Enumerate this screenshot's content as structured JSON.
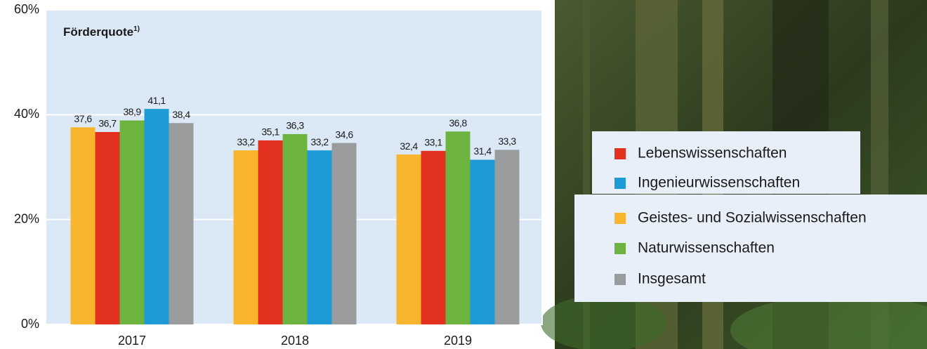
{
  "chart_data": {
    "type": "bar",
    "title": "Förderquote",
    "title_note": "1)",
    "categories": [
      "2017",
      "2018",
      "2019"
    ],
    "series": [
      {
        "name": "Geistes- und Sozialwissenschaften",
        "color": "#f9b52e",
        "values": [
          37.6,
          33.2,
          32.4
        ],
        "value_labels": [
          "37,6",
          "33,2",
          "32,4"
        ]
      },
      {
        "name": "Lebenswissenschaften",
        "color": "#e2321f",
        "values": [
          36.7,
          35.1,
          33.1
        ],
        "value_labels": [
          "36,7",
          "35,1",
          "33,1"
        ]
      },
      {
        "name": "Naturwissenschaften",
        "color": "#6cb33f",
        "values": [
          38.9,
          36.3,
          36.8
        ],
        "value_labels": [
          "38,9",
          "36,3",
          "36,8"
        ]
      },
      {
        "name": "Ingenieurwissenschaften",
        "color": "#1e9ad6",
        "values": [
          41.1,
          33.2,
          31.4
        ],
        "value_labels": [
          "41,1",
          "33,2",
          "31,4"
        ]
      },
      {
        "name": "Insgesamt",
        "color": "#9a9b9c",
        "values": [
          38.4,
          34.6,
          33.3
        ],
        "value_labels": [
          "38,4",
          "34,6",
          "33,3"
        ]
      }
    ],
    "ylim": [
      0,
      60
    ],
    "yticks": [
      {
        "value": 0,
        "label": "0%"
      },
      {
        "value": 20,
        "label": "20%"
      },
      {
        "value": 40,
        "label": "40%"
      },
      {
        "value": 60,
        "label": "60%"
      }
    ],
    "grid": true
  }
}
